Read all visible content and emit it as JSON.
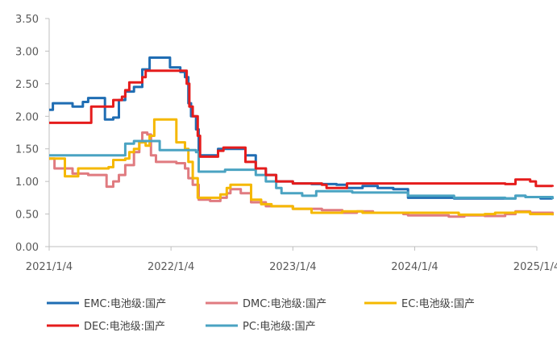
{
  "chart_data": {
    "type": "line",
    "title": "",
    "xlabel": "",
    "ylabel": "",
    "ylim": [
      0,
      3.5
    ],
    "x_ticks": [
      "2021/1/4",
      "2022/1/4",
      "2023/1/4",
      "2024/1/4",
      "2025/1/4"
    ],
    "y_ticks": [
      "0.00",
      "0.50",
      "1.00",
      "1.50",
      "2.00",
      "2.50",
      "3.00",
      "3.50"
    ],
    "grid": false,
    "legend_position": "bottom",
    "series": [
      {
        "name": "EMC:电池级:国产",
        "color": "#1f6db3",
        "points": [
          [
            "2021-01-04",
            2.1
          ],
          [
            "2021-01-15",
            2.2
          ],
          [
            "2021-03-01",
            2.2
          ],
          [
            "2021-03-15",
            2.15
          ],
          [
            "2021-04-15",
            2.22
          ],
          [
            "2021-05-01",
            2.28
          ],
          [
            "2021-06-15",
            2.28
          ],
          [
            "2021-06-20",
            1.95
          ],
          [
            "2021-07-15",
            1.98
          ],
          [
            "2021-08-01",
            2.25
          ],
          [
            "2021-08-20",
            2.38
          ],
          [
            "2021-09-15",
            2.45
          ],
          [
            "2021-10-10",
            2.72
          ],
          [
            "2021-11-01",
            2.9
          ],
          [
            "2021-12-15",
            2.9
          ],
          [
            "2022-01-01",
            2.75
          ],
          [
            "2022-02-01",
            2.68
          ],
          [
            "2022-02-15",
            2.6
          ],
          [
            "2022-02-25",
            2.2
          ],
          [
            "2022-03-05",
            2.0
          ],
          [
            "2022-03-20",
            1.8
          ],
          [
            "2022-03-28",
            1.4
          ],
          [
            "2022-05-15",
            1.4
          ],
          [
            "2022-05-25",
            1.5
          ],
          [
            "2022-07-20",
            1.5
          ],
          [
            "2022-08-15",
            1.4
          ],
          [
            "2022-09-15",
            1.2
          ],
          [
            "2022-10-15",
            1.1
          ],
          [
            "2022-11-15",
            1.0
          ],
          [
            "2023-01-04",
            0.97
          ],
          [
            "2023-03-01",
            0.96
          ],
          [
            "2023-05-15",
            0.95
          ],
          [
            "2023-06-15",
            0.9
          ],
          [
            "2023-07-15",
            0.9
          ],
          [
            "2023-08-01",
            0.93
          ],
          [
            "2023-09-15",
            0.9
          ],
          [
            "2023-11-01",
            0.88
          ],
          [
            "2023-12-01",
            0.88
          ],
          [
            "2023-12-15",
            0.75
          ],
          [
            "2024-04-15",
            0.75
          ],
          [
            "2024-05-01",
            0.74
          ],
          [
            "2024-10-01",
            0.74
          ],
          [
            "2024-11-01",
            0.78
          ],
          [
            "2024-12-01",
            0.76
          ],
          [
            "2025-01-15",
            0.74
          ],
          [
            "2025-02-20",
            0.74
          ]
        ]
      },
      {
        "name": "DMC:电池级:国产",
        "color": "#e07b80",
        "points": [
          [
            "2021-01-04",
            1.35
          ],
          [
            "2021-01-20",
            1.2
          ],
          [
            "2021-03-01",
            1.2
          ],
          [
            "2021-03-15",
            1.12
          ],
          [
            "2021-04-15",
            1.12
          ],
          [
            "2021-05-01",
            1.1
          ],
          [
            "2021-06-15",
            1.1
          ],
          [
            "2021-06-25",
            0.92
          ],
          [
            "2021-07-15",
            1.0
          ],
          [
            "2021-08-01",
            1.1
          ],
          [
            "2021-08-20",
            1.25
          ],
          [
            "2021-09-15",
            1.45
          ],
          [
            "2021-10-01",
            1.6
          ],
          [
            "2021-10-10",
            1.75
          ],
          [
            "2021-10-25",
            1.72
          ],
          [
            "2021-11-05",
            1.4
          ],
          [
            "2021-11-20",
            1.3
          ],
          [
            "2022-01-20",
            1.28
          ],
          [
            "2022-02-15",
            1.2
          ],
          [
            "2022-02-25",
            1.05
          ],
          [
            "2022-03-10",
            0.95
          ],
          [
            "2022-03-28",
            0.72
          ],
          [
            "2022-05-01",
            0.7
          ],
          [
            "2022-05-15",
            0.7
          ],
          [
            "2022-06-01",
            0.75
          ],
          [
            "2022-06-20",
            0.82
          ],
          [
            "2022-07-01",
            0.88
          ],
          [
            "2022-08-01",
            0.82
          ],
          [
            "2022-09-01",
            0.68
          ],
          [
            "2022-10-15",
            0.62
          ],
          [
            "2023-01-04",
            0.58
          ],
          [
            "2023-04-01",
            0.56
          ],
          [
            "2023-06-01",
            0.52
          ],
          [
            "2023-07-15",
            0.54
          ],
          [
            "2023-09-01",
            0.52
          ],
          [
            "2023-12-01",
            0.5
          ],
          [
            "2023-12-15",
            0.48
          ],
          [
            "2024-03-01",
            0.48
          ],
          [
            "2024-04-15",
            0.46
          ],
          [
            "2024-06-01",
            0.48
          ],
          [
            "2024-08-01",
            0.47
          ],
          [
            "2024-10-01",
            0.5
          ],
          [
            "2024-11-01",
            0.54
          ],
          [
            "2024-12-15",
            0.52
          ],
          [
            "2025-02-20",
            0.5
          ]
        ]
      },
      {
        "name": "EC:电池级:国产",
        "color": "#f5b800",
        "points": [
          [
            "2021-01-04",
            1.35
          ],
          [
            "2021-02-15",
            1.35
          ],
          [
            "2021-02-20",
            1.08
          ],
          [
            "2021-03-20",
            1.08
          ],
          [
            "2021-04-01",
            1.2
          ],
          [
            "2021-06-01",
            1.2
          ],
          [
            "2021-07-01",
            1.22
          ],
          [
            "2021-07-15",
            1.33
          ],
          [
            "2021-08-20",
            1.35
          ],
          [
            "2021-09-01",
            1.45
          ],
          [
            "2021-09-15",
            1.5
          ],
          [
            "2021-10-01",
            1.6
          ],
          [
            "2021-10-20",
            1.55
          ],
          [
            "2021-11-01",
            1.7
          ],
          [
            "2021-11-15",
            1.95
          ],
          [
            "2022-01-04",
            1.95
          ],
          [
            "2022-01-20",
            1.6
          ],
          [
            "2022-02-15",
            1.5
          ],
          [
            "2022-02-25",
            1.3
          ],
          [
            "2022-03-10",
            1.05
          ],
          [
            "2022-03-25",
            0.75
          ],
          [
            "2022-05-15",
            0.75
          ],
          [
            "2022-06-01",
            0.8
          ],
          [
            "2022-06-20",
            0.9
          ],
          [
            "2022-07-01",
            0.95
          ],
          [
            "2022-08-20",
            0.95
          ],
          [
            "2022-09-01",
            0.72
          ],
          [
            "2022-10-01",
            0.65
          ],
          [
            "2022-11-01",
            0.62
          ],
          [
            "2023-01-04",
            0.58
          ],
          [
            "2023-03-01",
            0.52
          ],
          [
            "2023-05-01",
            0.52
          ],
          [
            "2023-06-01",
            0.54
          ],
          [
            "2023-08-01",
            0.52
          ],
          [
            "2023-12-01",
            0.52
          ],
          [
            "2024-05-01",
            0.52
          ],
          [
            "2024-05-15",
            0.49
          ],
          [
            "2024-08-01",
            0.5
          ],
          [
            "2024-09-01",
            0.52
          ],
          [
            "2024-11-01",
            0.53
          ],
          [
            "2024-12-15",
            0.5
          ],
          [
            "2025-02-01",
            0.5
          ],
          [
            "2025-02-20",
            0.48
          ]
        ]
      },
      {
        "name": "DEC:电池级:国产",
        "color": "#e51c1c",
        "points": [
          [
            "2021-01-04",
            1.9
          ],
          [
            "2021-05-01",
            1.9
          ],
          [
            "2021-05-10",
            2.15
          ],
          [
            "2021-07-01",
            2.15
          ],
          [
            "2021-07-15",
            2.25
          ],
          [
            "2021-08-10",
            2.3
          ],
          [
            "2021-08-20",
            2.4
          ],
          [
            "2021-09-01",
            2.52
          ],
          [
            "2021-10-01",
            2.52
          ],
          [
            "2021-10-10",
            2.6
          ],
          [
            "2021-10-20",
            2.7
          ],
          [
            "2022-01-04",
            2.7
          ],
          [
            "2022-02-10",
            2.7
          ],
          [
            "2022-02-20",
            2.5
          ],
          [
            "2022-02-28",
            2.15
          ],
          [
            "2022-03-10",
            2.0
          ],
          [
            "2022-03-25",
            1.7
          ],
          [
            "2022-04-01",
            1.38
          ],
          [
            "2022-05-15",
            1.38
          ],
          [
            "2022-05-25",
            1.47
          ],
          [
            "2022-06-10",
            1.52
          ],
          [
            "2022-07-15",
            1.52
          ],
          [
            "2022-08-15",
            1.3
          ],
          [
            "2022-09-15",
            1.2
          ],
          [
            "2022-10-15",
            1.1
          ],
          [
            "2022-11-15",
            1.0
          ],
          [
            "2023-01-04",
            0.97
          ],
          [
            "2023-04-01",
            0.95
          ],
          [
            "2023-04-15",
            0.9
          ],
          [
            "2023-06-01",
            0.9
          ],
          [
            "2023-06-15",
            0.97
          ],
          [
            "2024-10-01",
            0.96
          ],
          [
            "2024-11-01",
            1.03
          ],
          [
            "2024-12-15",
            1.0
          ],
          [
            "2025-01-01",
            0.93
          ],
          [
            "2025-02-20",
            0.92
          ]
        ]
      },
      {
        "name": "PC:电池级:国产",
        "color": "#4aa3c2",
        "points": [
          [
            "2021-01-04",
            1.4
          ],
          [
            "2021-08-15",
            1.4
          ],
          [
            "2021-08-20",
            1.58
          ],
          [
            "2021-09-15",
            1.62
          ],
          [
            "2021-11-15",
            1.62
          ],
          [
            "2021-12-01",
            1.48
          ],
          [
            "2022-03-01",
            1.48
          ],
          [
            "2022-03-20",
            1.45
          ],
          [
            "2022-03-28",
            1.15
          ],
          [
            "2022-06-01",
            1.15
          ],
          [
            "2022-06-15",
            1.18
          ],
          [
            "2022-08-20",
            1.18
          ],
          [
            "2022-09-15",
            1.1
          ],
          [
            "2022-10-15",
            1.0
          ],
          [
            "2022-11-15",
            0.9
          ],
          [
            "2022-12-01",
            0.82
          ],
          [
            "2023-02-01",
            0.78
          ],
          [
            "2023-03-01",
            0.78
          ],
          [
            "2023-03-15",
            0.85
          ],
          [
            "2023-06-15",
            0.85
          ],
          [
            "2023-07-01",
            0.83
          ],
          [
            "2023-12-01",
            0.83
          ],
          [
            "2023-12-15",
            0.78
          ],
          [
            "2024-04-15",
            0.78
          ],
          [
            "2024-05-01",
            0.75
          ],
          [
            "2024-10-01",
            0.74
          ],
          [
            "2024-11-01",
            0.78
          ],
          [
            "2024-12-01",
            0.76
          ],
          [
            "2025-02-20",
            0.73
          ]
        ]
      }
    ]
  }
}
